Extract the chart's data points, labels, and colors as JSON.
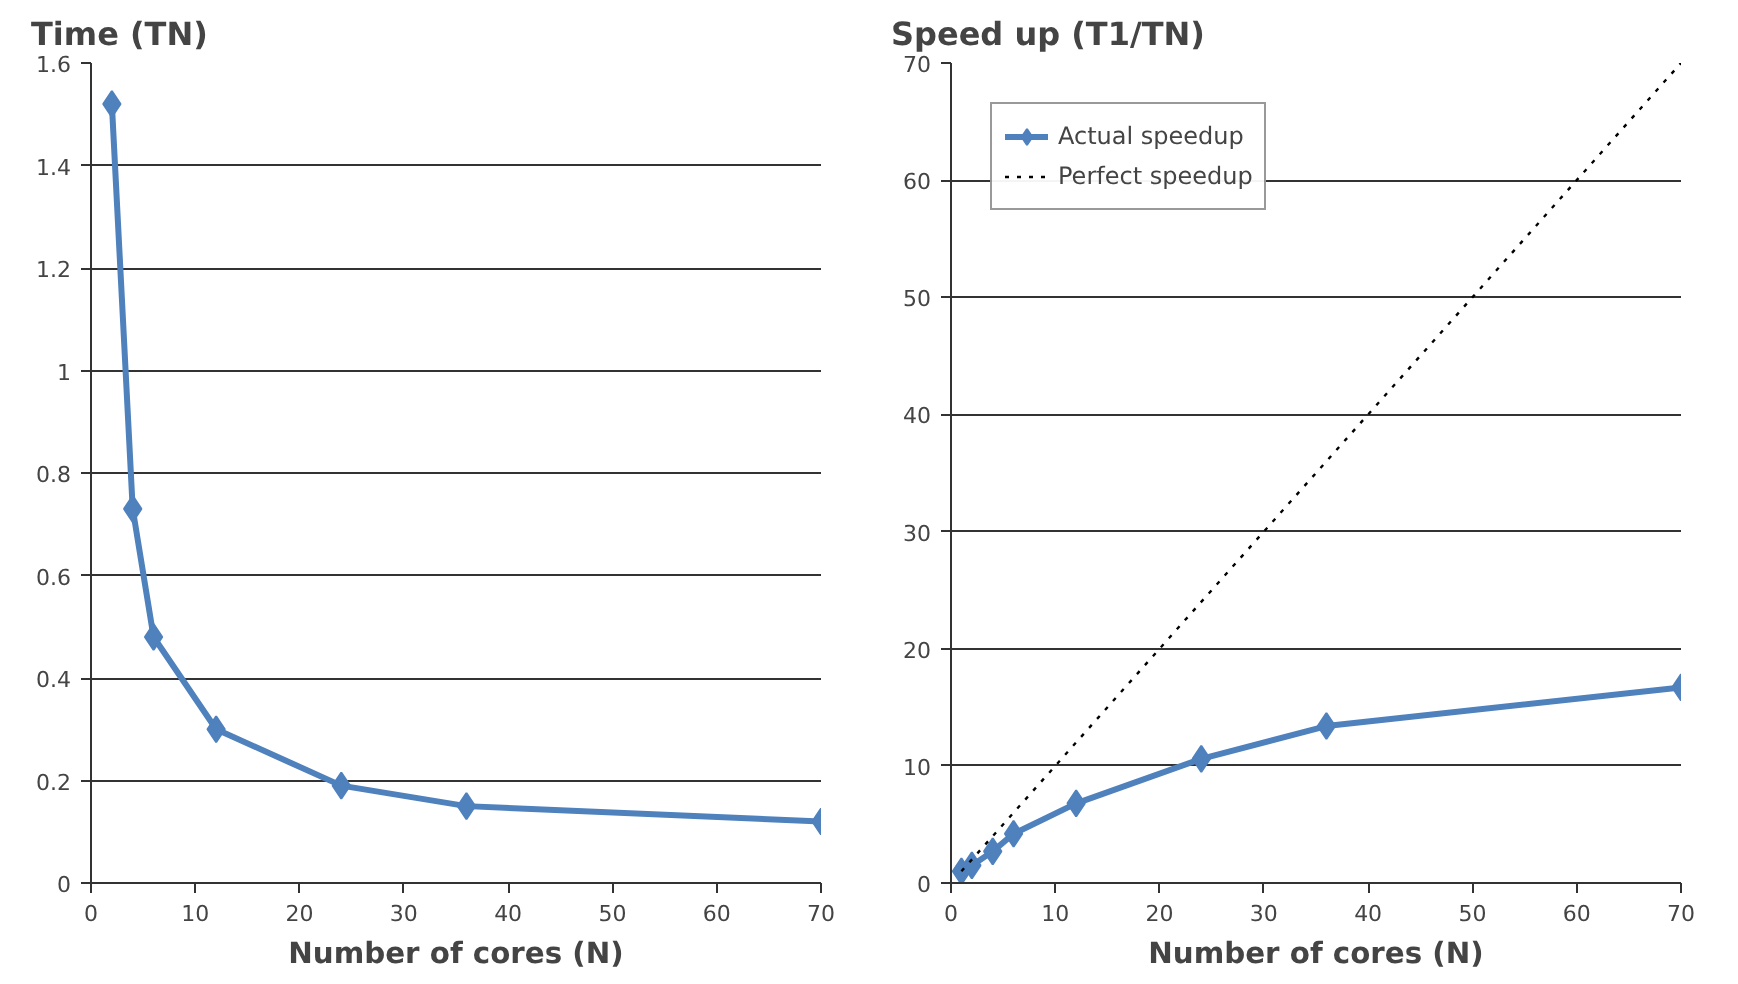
{
  "chart_data": [
    {
      "type": "line",
      "ylabel": "Time (TN)",
      "xlabel": "Number of cores (N)",
      "xlim": [
        0,
        70
      ],
      "xticks": [
        0,
        10,
        20,
        30,
        40,
        50,
        60,
        70
      ],
      "ylim": [
        0,
        1.6
      ],
      "yticks": [
        0,
        0.2,
        0.4,
        0.6,
        0.8,
        1,
        1.2,
        1.4,
        1.6
      ],
      "grid": "y",
      "marker": "diamond",
      "x": [
        2,
        4,
        6,
        12,
        24,
        36,
        70
      ],
      "series": [
        {
          "color": "#4f81bd",
          "values": [
            1.52,
            0.73,
            0.48,
            0.3,
            0.19,
            0.15,
            0.12
          ]
        }
      ]
    },
    {
      "type": "line",
      "ylabel": "Speed up (T1/TN)",
      "xlabel": "Number of cores (N)",
      "xlim": [
        0,
        70
      ],
      "xticks": [
        0,
        10,
        20,
        30,
        40,
        50,
        60,
        70
      ],
      "ylim": [
        0,
        70
      ],
      "yticks": [
        0,
        10,
        20,
        30,
        40,
        50,
        60,
        70
      ],
      "grid": "y",
      "legend": "top left",
      "series": [
        {
          "name": "Actual speedup",
          "color": "#4f81bd",
          "marker": "diamond",
          "line_style": "solid",
          "x": [
            1,
            2,
            4,
            6,
            12,
            24,
            36,
            70
          ],
          "values": [
            1,
            1.5,
            2.7,
            4.2,
            6.8,
            10.6,
            13.4,
            16.7
          ]
        },
        {
          "name": "Perfect speedup",
          "color": "#000000",
          "marker": "none",
          "line_style": "dotted",
          "x": [
            1,
            70
          ],
          "values": [
            1,
            70
          ]
        }
      ]
    }
  ]
}
